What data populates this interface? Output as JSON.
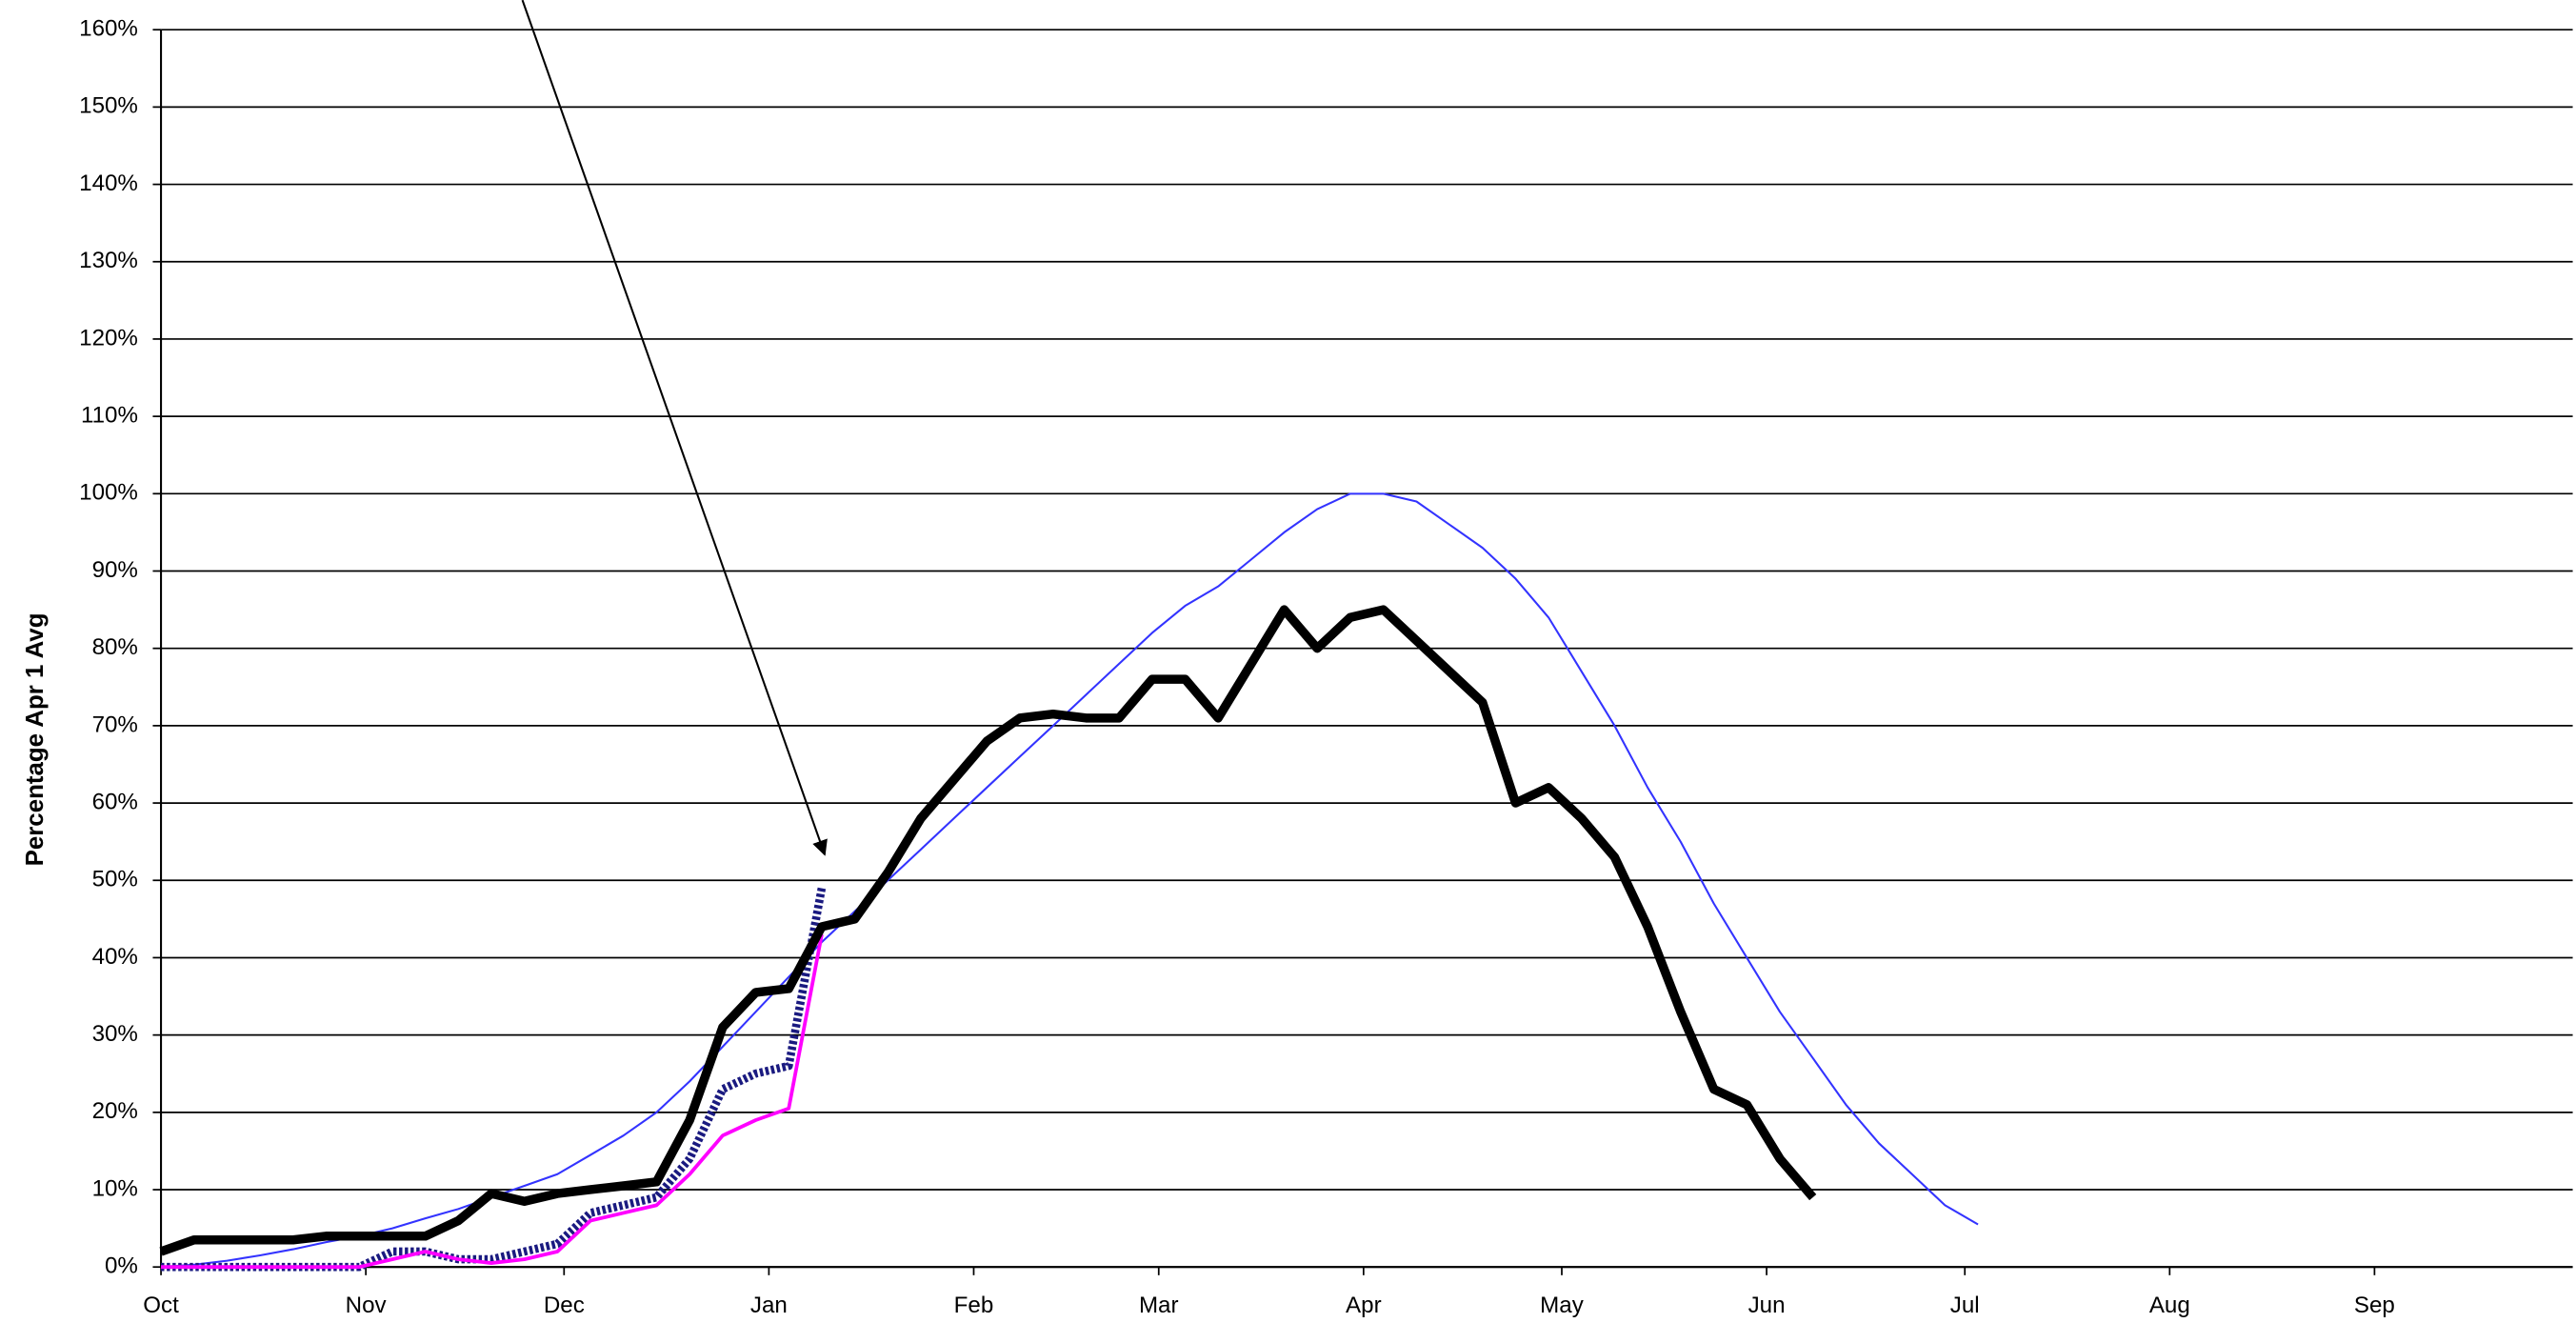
{
  "chart_data": {
    "type": "line",
    "ylabel": "Percentage Apr 1 Avg",
    "xlim": [
      0,
      365
    ],
    "xticks": [
      {
        "value": 0,
        "label": "Oct"
      },
      {
        "value": 31,
        "label": "Nov"
      },
      {
        "value": 61,
        "label": "Dec"
      },
      {
        "value": 92,
        "label": "Jan"
      },
      {
        "value": 123,
        "label": "Feb"
      },
      {
        "value": 151,
        "label": "Mar"
      },
      {
        "value": 182,
        "label": "Apr"
      },
      {
        "value": 212,
        "label": "May"
      },
      {
        "value": 243,
        "label": "Jun"
      },
      {
        "value": 273,
        "label": "Jul"
      },
      {
        "value": 304,
        "label": "Aug"
      },
      {
        "value": 335,
        "label": "Sep"
      }
    ],
    "ylim": [
      0,
      160
    ],
    "yticks": [
      {
        "value": 0,
        "label": "0%"
      },
      {
        "value": 10,
        "label": "10%"
      },
      {
        "value": 20,
        "label": "20%"
      },
      {
        "value": 30,
        "label": "30%"
      },
      {
        "value": 40,
        "label": "40%"
      },
      {
        "value": 50,
        "label": "50%"
      },
      {
        "value": 60,
        "label": "60%"
      },
      {
        "value": 70,
        "label": "70%"
      },
      {
        "value": 80,
        "label": "80%"
      },
      {
        "value": 90,
        "label": "90%"
      },
      {
        "value": 100,
        "label": "100%"
      },
      {
        "value": 110,
        "label": "110%"
      },
      {
        "value": 120,
        "label": "120%"
      },
      {
        "value": 130,
        "label": "130%"
      },
      {
        "value": 140,
        "label": "140%"
      },
      {
        "value": 150,
        "label": "150%"
      },
      {
        "value": 160,
        "label": "160%"
      }
    ],
    "grid": true,
    "x": [
      0,
      5,
      10,
      15,
      20,
      25,
      30,
      35,
      40,
      45,
      50,
      55,
      60,
      65,
      70,
      75,
      80,
      85,
      90,
      95,
      100,
      105,
      110,
      115,
      120,
      125,
      130,
      135,
      140,
      145,
      150,
      155,
      160,
      165,
      170,
      175,
      180,
      185,
      190,
      195,
      200,
      205,
      210,
      215,
      220,
      225,
      230,
      235,
      240,
      245,
      250,
      255,
      260,
      265,
      270,
      275
    ],
    "series": [
      {
        "color": "#3333ff",
        "values": [
          0,
          0.3,
          0.8,
          1.5,
          2.3,
          3.2,
          4,
          5,
          6.3,
          7.5,
          9,
          10.5,
          12,
          14.5,
          17,
          20,
          24,
          28.5,
          33,
          37.5,
          42,
          46,
          50,
          54,
          58,
          62,
          66,
          70,
          74,
          78,
          82,
          85.5,
          88,
          91.5,
          95,
          98,
          100,
          100,
          99,
          96,
          93,
          89,
          84,
          77,
          70,
          62,
          55,
          47,
          40,
          33,
          27,
          21,
          16,
          12,
          8,
          5.5
        ]
      },
      {
        "color": "#1a1a80",
        "values": [
          0,
          0,
          0,
          0,
          0,
          0,
          0,
          2,
          2,
          1,
          1,
          2,
          3,
          7,
          8,
          9,
          14,
          23,
          25,
          26,
          49,
          null,
          null,
          null,
          null,
          null,
          null,
          null,
          null,
          null,
          null,
          null,
          null,
          null,
          null,
          null,
          null,
          null,
          null,
          null,
          null,
          null,
          null,
          null,
          null,
          null,
          null,
          null,
          null,
          null,
          null,
          null,
          null,
          null,
          null,
          null
        ]
      },
      {
        "color": "#ff00ff",
        "values": [
          0,
          0,
          0,
          0,
          0,
          0,
          0,
          1,
          2,
          1,
          0.5,
          1,
          2,
          6,
          7,
          8,
          12,
          17,
          19,
          20.5,
          43,
          null,
          null,
          null,
          null,
          null,
          null,
          null,
          null,
          null,
          null,
          null,
          null,
          null,
          null,
          null,
          null,
          null,
          null,
          null,
          null,
          null,
          null,
          null,
          null,
          null,
          null,
          null,
          null,
          null,
          null,
          null,
          null,
          null,
          null,
          null
        ]
      },
      {
        "color": "#000000",
        "values": [
          2,
          3.5,
          3.5,
          3.5,
          3.5,
          4,
          4,
          4,
          4,
          6,
          9.5,
          8.5,
          9.5,
          10,
          10.5,
          11,
          19,
          31,
          35.5,
          36,
          44,
          45,
          51,
          58,
          63,
          68,
          71,
          71.5,
          71,
          71,
          76,
          76,
          71,
          78,
          85,
          80,
          84,
          85,
          81,
          77,
          73,
          60,
          62,
          58,
          53,
          44,
          33,
          23,
          21,
          14,
          9,
          null,
          null,
          null,
          null,
          null
        ]
      }
    ]
  }
}
